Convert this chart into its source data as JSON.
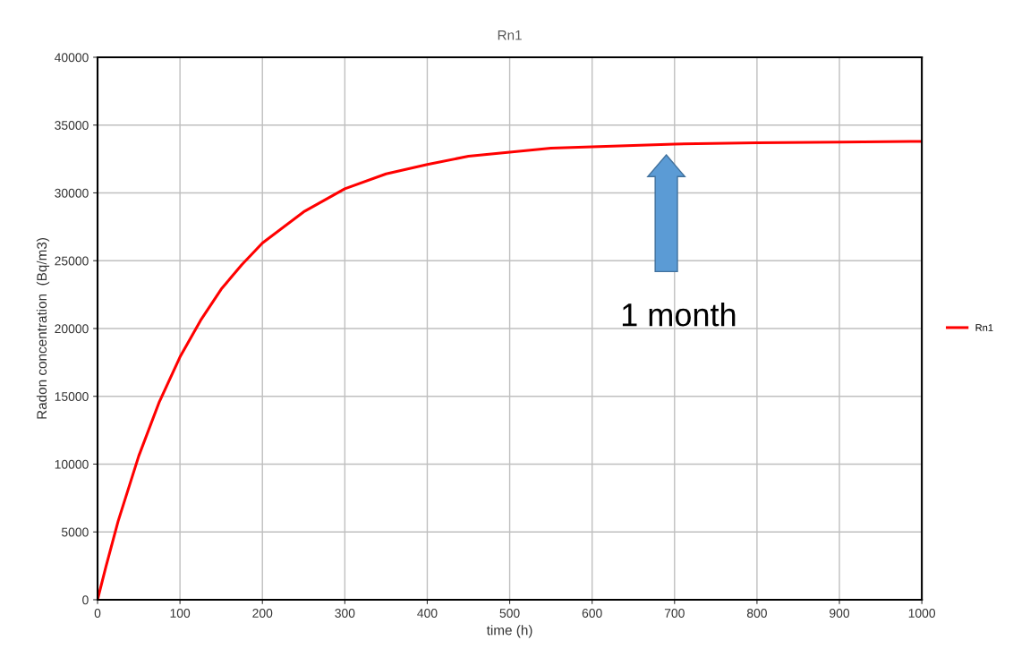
{
  "chart_data": {
    "type": "line",
    "title": "Rn1",
    "xlabel": "time (h)",
    "ylabel": "Radon concentration  (Bq/m3)",
    "x": [
      0,
      10,
      25,
      50,
      75,
      100,
      125,
      150,
      175,
      200,
      250,
      300,
      350,
      400,
      450,
      500,
      550,
      600,
      700,
      800,
      900,
      1000
    ],
    "series": [
      {
        "name": "Rn1",
        "color": "#ff0000",
        "values": [
          0,
          2400,
          5800,
          10600,
          14600,
          17900,
          20600,
          22900,
          24700,
          26300,
          28600,
          30300,
          31400,
          32100,
          32700,
          33000,
          33300,
          33400,
          33600,
          33700,
          33750,
          33800
        ]
      }
    ],
    "xlim": [
      0,
      1000
    ],
    "xticks": [
      0,
      100,
      200,
      300,
      400,
      500,
      600,
      700,
      800,
      900,
      1000
    ],
    "ylim": [
      0,
      40000
    ],
    "yticks": [
      0,
      5000,
      10000,
      15000,
      20000,
      25000,
      30000,
      35000,
      40000
    ],
    "grid": true,
    "legend": "right",
    "marker": "none",
    "line_style": "solid",
    "annotations": [
      "1 month"
    ]
  }
}
